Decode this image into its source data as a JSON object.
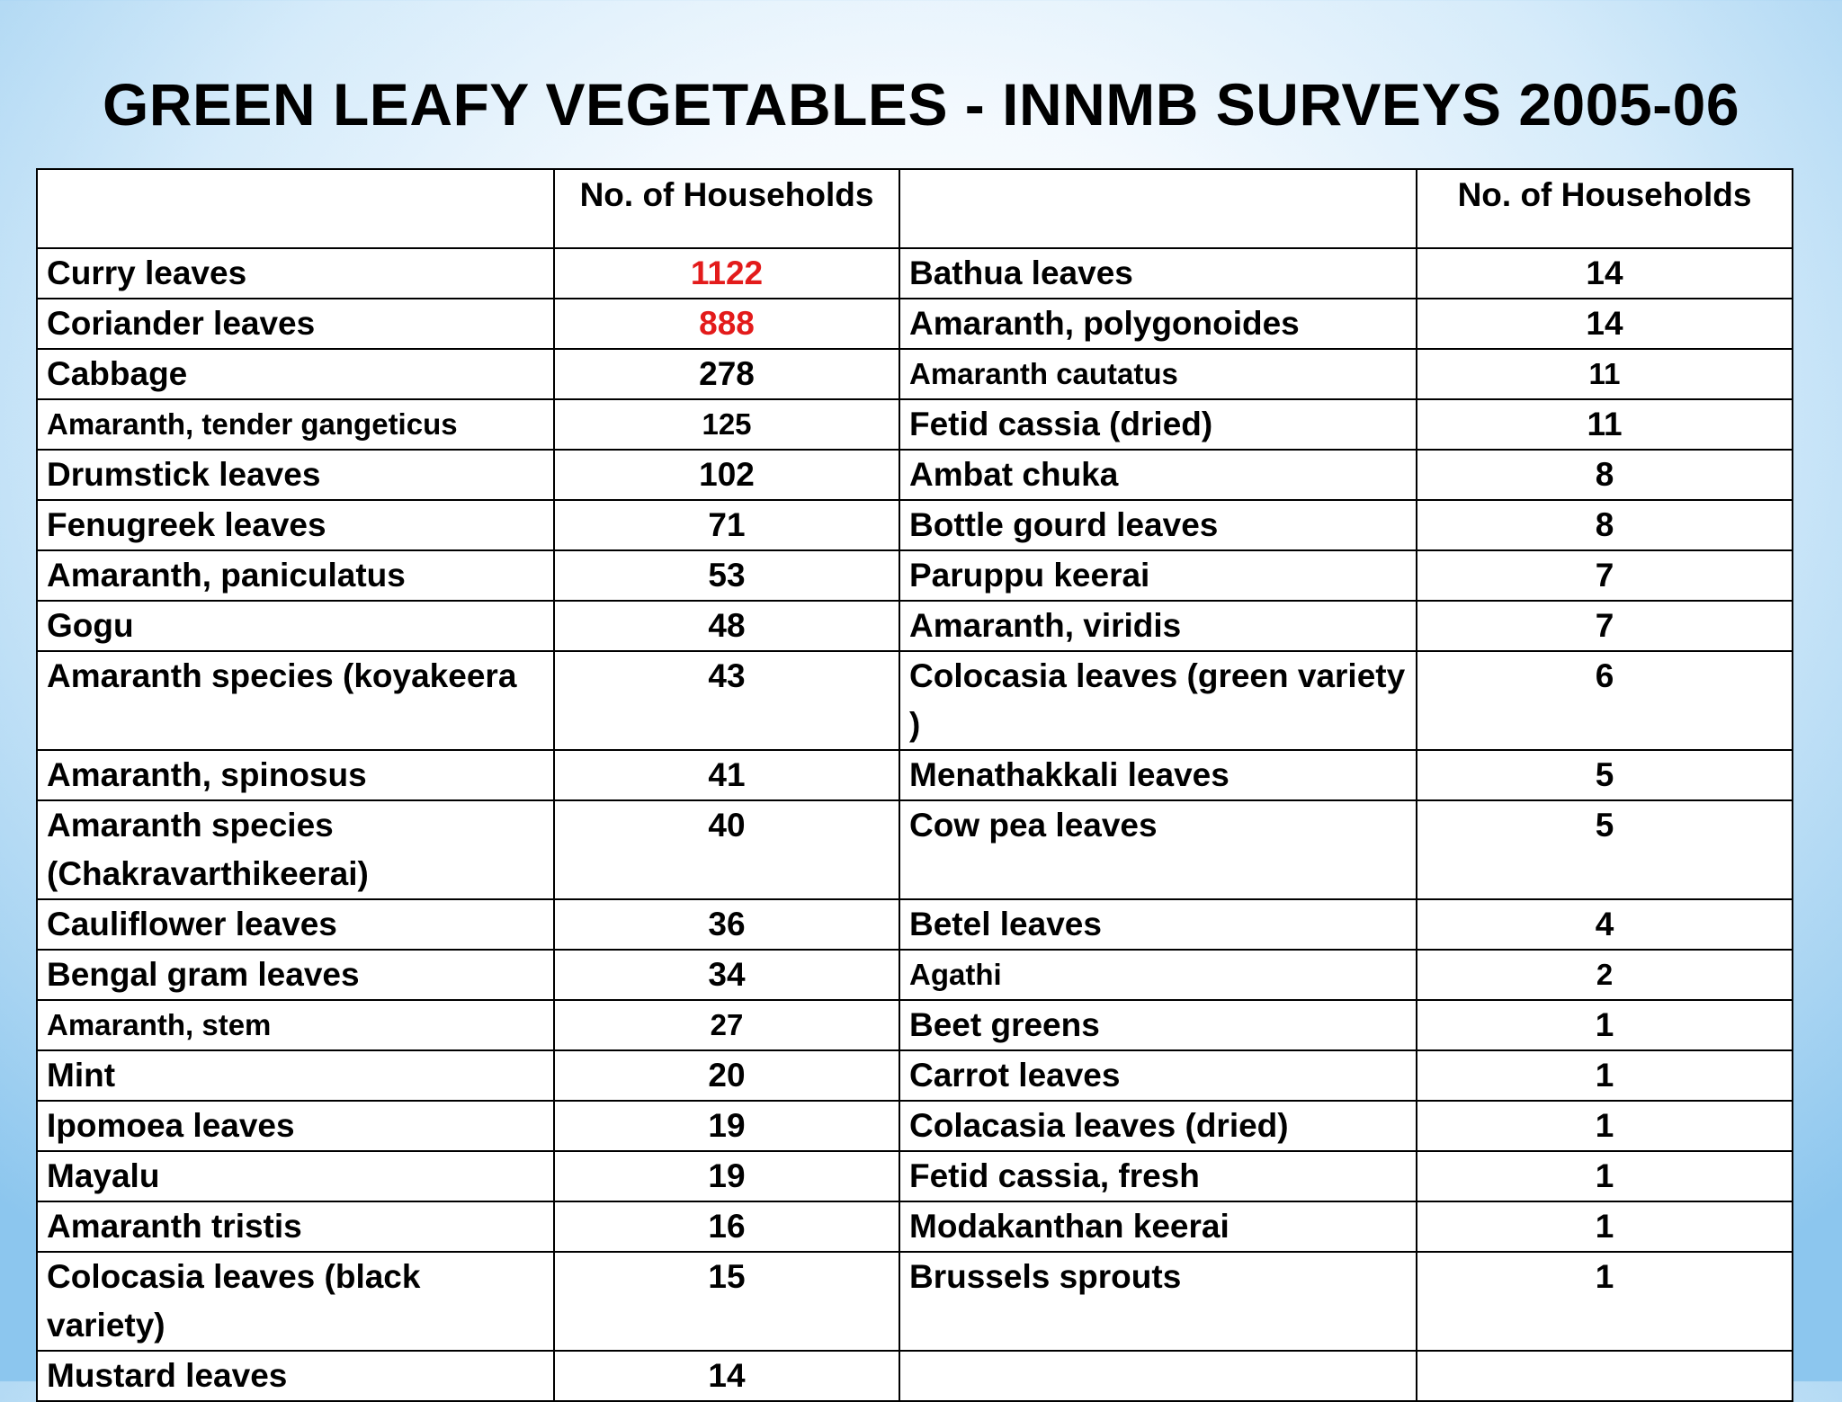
{
  "title": "GREEN LEAFY VEGETABLES - INNMB SURVEYS 2005-06",
  "table": {
    "headers": [
      "",
      "No. of Households",
      "",
      "No. of Households"
    ],
    "rows": [
      [
        "Curry leaves",
        "1122",
        "Bathua leaves",
        "14"
      ],
      [
        "Coriander leaves",
        "888",
        "Amaranth, polygonoides",
        "14"
      ],
      [
        "Cabbage",
        "278",
        "Amaranth cautatus",
        "11"
      ],
      [
        "Amaranth, tender gangeticus",
        "125",
        "Fetid cassia (dried)",
        "11"
      ],
      [
        "Drumstick leaves",
        "102",
        "Ambat chuka",
        "8"
      ],
      [
        "Fenugreek leaves",
        "71",
        "Bottle gourd leaves",
        "8"
      ],
      [
        "Amaranth, paniculatus",
        "53",
        "Paruppu keerai",
        "7"
      ],
      [
        "Gogu",
        "48",
        "Amaranth, viridis",
        "7"
      ],
      [
        "Amaranth species (koyakeera",
        "43",
        "Colocasia leaves (green variety )",
        "6"
      ],
      [
        "Amaranth, spinosus",
        "41",
        "Menathakkali leaves",
        "5"
      ],
      [
        "Amaranth species (Chakravarthikeerai)",
        "40",
        "Cow pea leaves",
        "5"
      ],
      [
        "Cauliflower leaves",
        "36",
        "Betel leaves",
        "4"
      ],
      [
        "Bengal gram leaves",
        "34",
        "Agathi",
        "2"
      ],
      [
        "Amaranth, stem",
        "27",
        "Beet greens",
        "1"
      ],
      [
        "Mint",
        "20",
        "Carrot leaves",
        "1"
      ],
      [
        "Ipomoea leaves",
        "19",
        "Colacasia leaves (dried)",
        "1"
      ],
      [
        "Mayalu",
        "19",
        "Fetid cassia, fresh",
        "1"
      ],
      [
        "Amaranth tristis",
        "16",
        "Modakanthan keerai",
        "1"
      ],
      [
        "Colocasia leaves (black variety)",
        "15",
        "Brussels sprouts",
        "1"
      ],
      [
        "Mustard leaves",
        "14",
        "",
        ""
      ]
    ],
    "highlight_color": "#e31b1b"
  }
}
